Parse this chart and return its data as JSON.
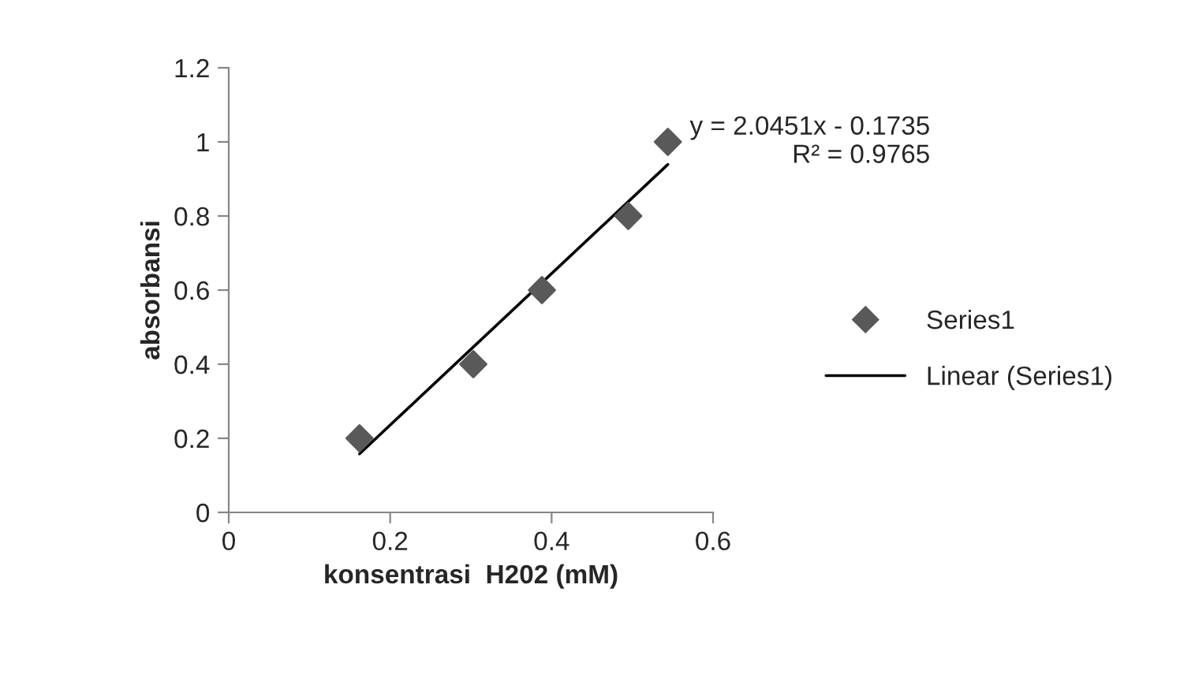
{
  "chart_data": {
    "type": "scatter",
    "xlabel": "konsentrasi  H202 (mM)",
    "ylabel": "absorbansi",
    "series": [
      {
        "name": "Series1",
        "color": "#595959",
        "marker": "diamond",
        "x": [
          0.162,
          0.303,
          0.388,
          0.495,
          0.544
        ],
        "values": [
          0.2,
          0.4,
          0.6,
          0.8,
          1.0
        ]
      },
      {
        "name": "Linear (Series1)",
        "type": "line",
        "color": "#000000",
        "marker": "none",
        "line_style": "solid",
        "x": [
          0.162,
          0.544
        ],
        "values": [
          0.158,
          0.939
        ]
      }
    ],
    "annotations": [
      {
        "text": "y = 2.0451x - 0.1735\nR² = 0.9765",
        "x": 0.544,
        "y": 1.0
      }
    ],
    "xlim": [
      0,
      0.6
    ],
    "xticks": [
      0,
      0.2,
      0.4,
      0.6
    ],
    "ylim": [
      0,
      1.2
    ],
    "yticks": [
      0,
      0.2,
      0.4,
      0.6,
      0.8,
      1,
      1.2
    ],
    "grid": false,
    "legend": "right"
  }
}
